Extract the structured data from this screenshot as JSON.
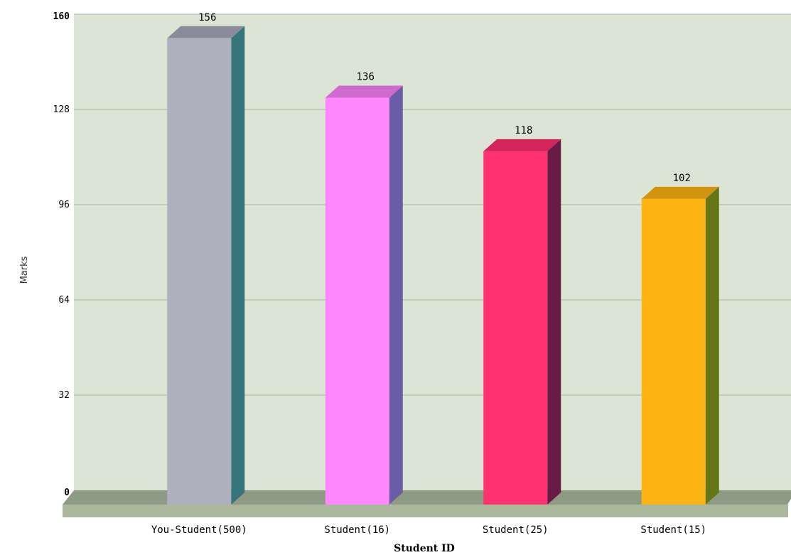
{
  "chart_data": {
    "type": "bar",
    "title": "",
    "xlabel": "Student ID",
    "ylabel": "Marks",
    "ylim": [
      0,
      160
    ],
    "y_ticks": [
      "0",
      "32",
      "64",
      "96",
      "128",
      "160"
    ],
    "grid": true,
    "categories": [
      "You-Student(500)",
      "Student(16)",
      "Student(25)",
      "Student(15)"
    ],
    "values": [
      156,
      136,
      118,
      102
    ],
    "value_labels": [
      "156",
      "136",
      "118",
      "102"
    ],
    "bar_colors": [
      {
        "front": "#AFB0BE",
        "side": "#357478",
        "top": "#8B8C9B"
      },
      {
        "front": "#FF88FF",
        "side": "#6B5CA8",
        "top": "#CF6BCF"
      },
      {
        "front": "#FF3270",
        "side": "#681B45",
        "top": "#D4245C"
      },
      {
        "front": "#FCB512",
        "side": "#657617",
        "top": "#D0940E"
      }
    ],
    "plot_background": "#DCE4D6",
    "floor_colors": {
      "top": "#8E9B84",
      "front": "#AAB79A"
    }
  }
}
